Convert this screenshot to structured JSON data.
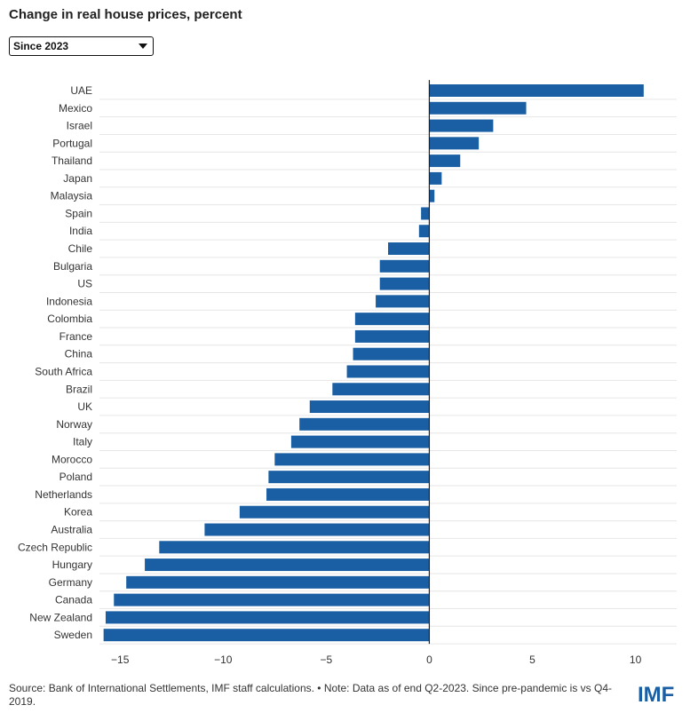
{
  "title": "Change in real house prices, percent",
  "dropdown": {
    "selected": "Since 2023"
  },
  "footer": {
    "source": "Source: Bank of International Settlements, IMF staff calculations. • Note: Data as of end Q2-2023. Since pre-pandemic is vs Q4-2019."
  },
  "logo": {
    "text": "IMF"
  },
  "colors": {
    "bar": "#1a5fa3",
    "grid": "#e6e6e6",
    "axis": "#222222"
  },
  "chart_data": {
    "type": "bar",
    "orientation": "horizontal",
    "title": "Change in real house prices, percent",
    "xlabel": "",
    "ylabel": "",
    "xlim": [
      -16,
      12
    ],
    "xticks": [
      -15,
      -10,
      -5,
      0,
      5,
      10
    ],
    "xtick_labels": [
      "−15",
      "−10",
      "−5",
      "0",
      "5",
      "10"
    ],
    "categories": [
      "UAE",
      "Mexico",
      "Israel",
      "Portugal",
      "Thailand",
      "Japan",
      "Malaysia",
      "Spain",
      "India",
      "Chile",
      "Bulgaria",
      "US",
      "Indonesia",
      "Colombia",
      "France",
      "China",
      "South Africa",
      "Brazil",
      "UK",
      "Norway",
      "Italy",
      "Morocco",
      "Poland",
      "Netherlands",
      "Korea",
      "Australia",
      "Czech Republic",
      "Hungary",
      "Germany",
      "Canada",
      "New Zealand",
      "Sweden"
    ],
    "values": [
      10.4,
      4.7,
      3.1,
      2.4,
      1.5,
      0.6,
      0.25,
      -0.4,
      -0.5,
      -2.0,
      -2.4,
      -2.4,
      -2.6,
      -3.6,
      -3.6,
      -3.7,
      -4.0,
      -4.7,
      -5.8,
      -6.3,
      -6.7,
      -7.5,
      -7.8,
      -7.9,
      -9.2,
      -10.9,
      -13.1,
      -13.8,
      -14.7,
      -15.3,
      -15.7,
      -15.8
    ],
    "grid": true
  }
}
